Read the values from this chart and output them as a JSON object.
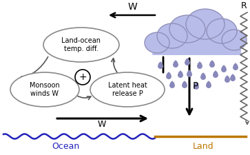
{
  "bg_color": "#ffffff",
  "cloud_color": "#b8bce8",
  "cloud_edge_color": "#9090bb",
  "rain_color": "#8888bb",
  "ocean_color": "#2222bb",
  "land_color": "#bb7700",
  "ellipse_edge_color": "#888888",
  "arrow_color": "#000000",
  "zigzag_color": "#666666",
  "W_top_label": "W",
  "R_label": "R",
  "P_label": "P",
  "W_bottom_label": "W",
  "ocean_label": "Ocean",
  "land_label": "Land",
  "ellipse1_text": "Land-ocean\ntemp. diff.",
  "ellipse2_text": "Monsoon\nwinds W",
  "ellipse3_text": "Latent heat\nrelease P",
  "ocean_label_color": "#2222bb",
  "land_label_color": "#bb7700",
  "fig_w": 3.63,
  "fig_h": 2.25,
  "dpi": 100
}
